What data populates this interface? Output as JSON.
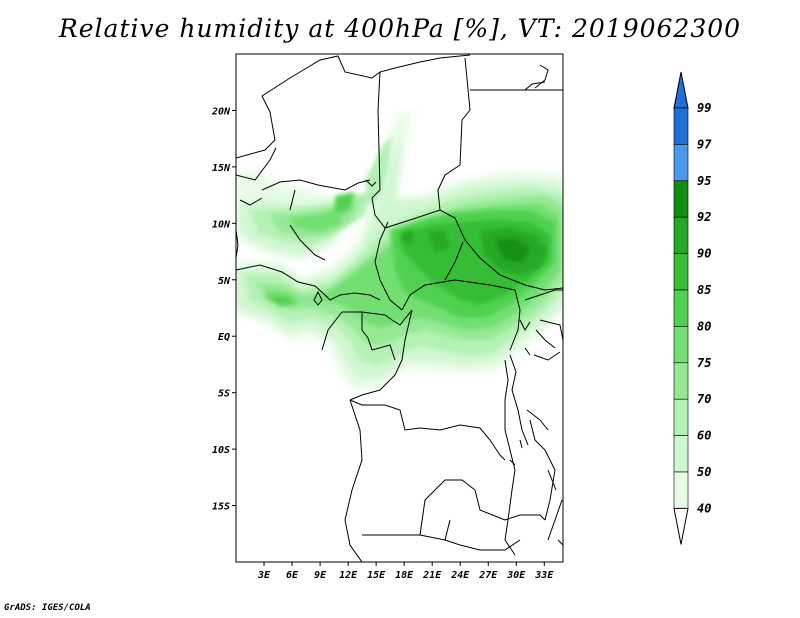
{
  "title": "Relative humidity at 400hPa [%], VT: 2019062300",
  "credit": "GrADS: IGES/COLA",
  "map": {
    "lon_range": [
      0,
      35
    ],
    "lat_range": [
      -20,
      25
    ],
    "lat_ticks": [
      "20N",
      "15N",
      "10N",
      "5N",
      "EQ",
      "5S",
      "10S",
      "15S"
    ],
    "lon_ticks": [
      "3E",
      "6E",
      "9E",
      "12E",
      "15E",
      "18E",
      "21E",
      "24E",
      "27E",
      "30E",
      "33E"
    ]
  },
  "colorbar": {
    "levels": [
      "99",
      "97",
      "95",
      "92",
      "90",
      "85",
      "80",
      "75",
      "70",
      "60",
      "50",
      "40"
    ],
    "colors": {
      "above_97": "#1f6fd9",
      "95_97": "#4b99ec",
      "92_95": "#128f12",
      "90_92": "#25a825",
      "85_90": "#36be36",
      "80_85": "#4fd14f",
      "75_80": "#73df73",
      "70_75": "#95e995",
      "60_70": "#b4f1b4",
      "50_60": "#cff7cf",
      "40_50": "#e7fbe7",
      "below_40": "#ffffff"
    }
  },
  "chart_data": {
    "type": "heatmap",
    "title": "Relative humidity at 400hPa [%], VT: 2019062300",
    "units": "%",
    "x_axis": "longitude",
    "y_axis": "latitude",
    "xlim": [
      0,
      35
    ],
    "ylim": [
      -20,
      25
    ],
    "contour_levels": [
      40,
      50,
      60,
      70,
      75,
      80,
      85,
      90,
      92,
      95,
      97,
      99
    ],
    "regions": [
      {
        "lon": [
          27,
          33
        ],
        "lat": [
          6,
          10
        ],
        "max_value": 92
      },
      {
        "lon": [
          21,
          27
        ],
        "lat": [
          2,
          11
        ],
        "max_value": 90
      },
      {
        "lon": [
          18,
          22
        ],
        "lat": [
          8,
          11
        ],
        "max_value": 90
      },
      {
        "lon": [
          10,
          16
        ],
        "lat": [
          10,
          13
        ],
        "max_value": 85
      },
      {
        "lon": [
          0,
          10
        ],
        "lat": [
          3,
          6
        ],
        "max_value": 80
      },
      {
        "lon": [
          15,
          18
        ],
        "lat": [
          13,
          20
        ],
        "max_value": 75
      }
    ]
  }
}
